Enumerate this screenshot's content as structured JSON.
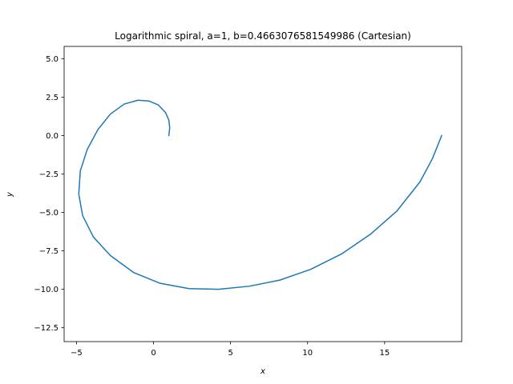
{
  "chart_data": {
    "type": "line",
    "title": "Logarithmic spiral, a=1, b=0.4663076581549986 (Cartesian)",
    "xlabel": "x",
    "ylabel": "y",
    "xlim": [
      -5.8,
      20.0
    ],
    "ylim": [
      -13.4,
      5.8
    ],
    "xticks": [
      -5,
      0,
      5,
      10,
      15
    ],
    "xtick_labels": [
      "−5",
      "0",
      "5",
      "10",
      "15"
    ],
    "yticks": [
      5.0,
      2.5,
      0.0,
      -2.5,
      -5.0,
      -7.5,
      -10.0,
      -12.5
    ],
    "ytick_labels": [
      "5.0",
      "2.5",
      "0.0",
      "−2.5",
      "−5.0",
      "−7.5",
      "−10.0",
      "−12.5"
    ],
    "grid": false,
    "colors": {
      "line": "#1f77b4",
      "axes": "#000000",
      "background": "#ffffff"
    },
    "series": [
      {
        "x": [
          1.0,
          1.05,
          1.0,
          0.78,
          0.3,
          -0.3,
          -1.0,
          -1.9,
          -2.8,
          -3.6,
          -4.3,
          -4.75,
          -4.85,
          -4.6,
          -3.9,
          -2.8,
          -1.3,
          0.4,
          2.3,
          4.2,
          6.2,
          8.2,
          10.2,
          12.2,
          14.1,
          15.8,
          17.3,
          18.1,
          18.7
        ],
        "y": [
          0.0,
          0.5,
          1.0,
          1.5,
          2.0,
          2.25,
          2.3,
          2.05,
          1.4,
          0.4,
          -0.9,
          -2.3,
          -3.8,
          -5.2,
          -6.6,
          -7.8,
          -8.9,
          -9.6,
          -9.95,
          -10.0,
          -9.8,
          -9.4,
          -8.7,
          -7.7,
          -6.4,
          -4.9,
          -3.0,
          -1.5,
          0.0
        ]
      }
    ]
  }
}
